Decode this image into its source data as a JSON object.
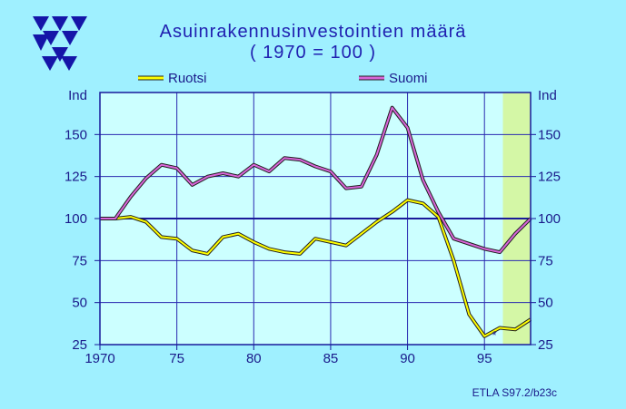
{
  "chart_data": {
    "type": "line",
    "title": "Asuinrakennusinvestointien  määrä",
    "subtitle": "( 1970 = 100 )",
    "ylabel_left": "Ind",
    "ylabel_right": "Ind",
    "x_ticks": [
      "1970",
      "75",
      "80",
      "85",
      "90",
      "95"
    ],
    "x_tick_values": [
      1970,
      1975,
      1980,
      1985,
      1990,
      1995
    ],
    "y_ticks": [
      25,
      50,
      75,
      100,
      125,
      150
    ],
    "ylim": [
      25,
      175
    ],
    "xlim": [
      1970,
      1998
    ],
    "forecast_start": 1996.2,
    "reference_line": 100,
    "asterisk": "*",
    "legend_position": "top",
    "series": [
      {
        "name": "Ruotsi",
        "color": "#ffff00",
        "x": [
          1970,
          1971,
          1972,
          1973,
          1974,
          1975,
          1976,
          1977,
          1978,
          1979,
          1980,
          1981,
          1982,
          1983,
          1984,
          1985,
          1986,
          1987,
          1988,
          1989,
          1990,
          1991,
          1992,
          1993,
          1994,
          1995,
          1996,
          1997,
          1998
        ],
        "values": [
          100,
          100,
          101,
          98,
          89,
          88,
          81,
          79,
          89,
          91,
          86,
          82,
          80,
          79,
          88,
          86,
          84,
          91,
          98,
          104,
          111,
          109,
          101,
          75,
          43,
          30,
          35,
          34,
          40
        ]
      },
      {
        "name": "Suomi",
        "color": "#d966d9",
        "x": [
          1970,
          1971,
          1972,
          1973,
          1974,
          1975,
          1976,
          1977,
          1978,
          1979,
          1980,
          1981,
          1982,
          1983,
          1984,
          1985,
          1986,
          1987,
          1988,
          1989,
          1990,
          1991,
          1992,
          1993,
          1994,
          1995,
          1996,
          1997,
          1998
        ],
        "values": [
          100,
          100,
          113,
          124,
          132,
          130,
          120,
          125,
          127,
          125,
          132,
          128,
          136,
          135,
          131,
          128,
          118,
          119,
          138,
          166,
          154,
          123,
          104,
          88,
          85,
          82,
          80,
          91,
          100
        ]
      }
    ]
  },
  "footer": "ETLA S97.2/b23c"
}
